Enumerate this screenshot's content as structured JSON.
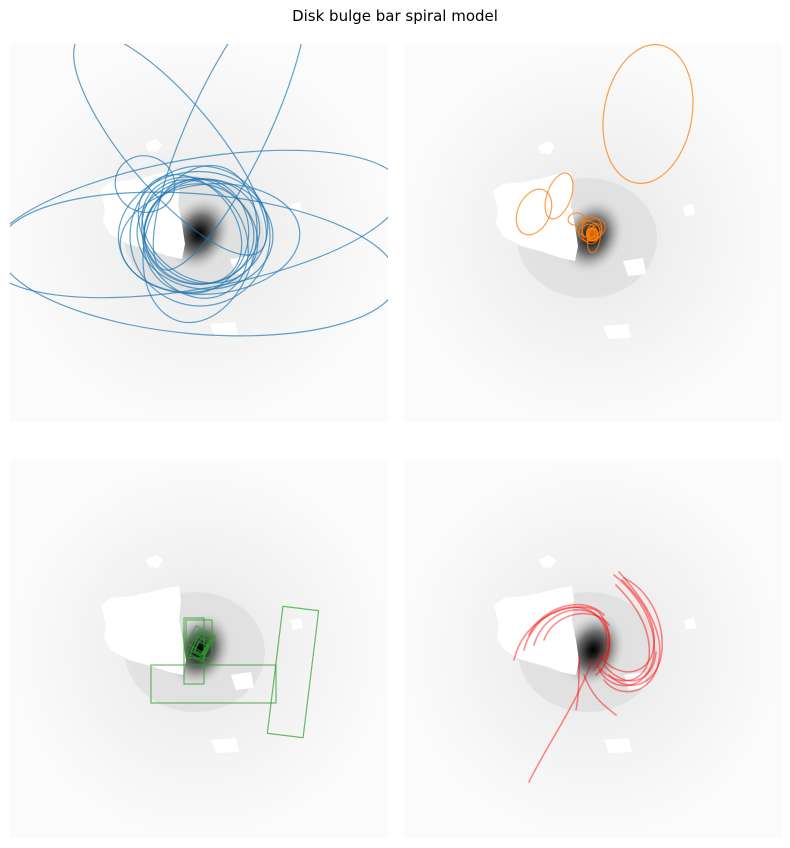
{
  "title": "Disk bulge bar spiral model",
  "chart_data": {
    "type": "figure-grid",
    "title": "Disk bulge bar spiral model",
    "layout": "2x2",
    "axes_visible": false,
    "background": "grayscale galaxy image with white masked regions",
    "panels": [
      {
        "component": "disk",
        "shape": "ellipse",
        "color": "#1f77b4",
        "count": 16
      },
      {
        "component": "bulge",
        "shape": "ellipse",
        "color": "#ff7f0e",
        "count": 12
      },
      {
        "component": "bar",
        "shape": "rectangle",
        "color": "#2ca02c",
        "count": 10
      },
      {
        "component": "spiral",
        "shape": "arm-curve",
        "color": "#ff0000",
        "count": 14
      }
    ]
  }
}
